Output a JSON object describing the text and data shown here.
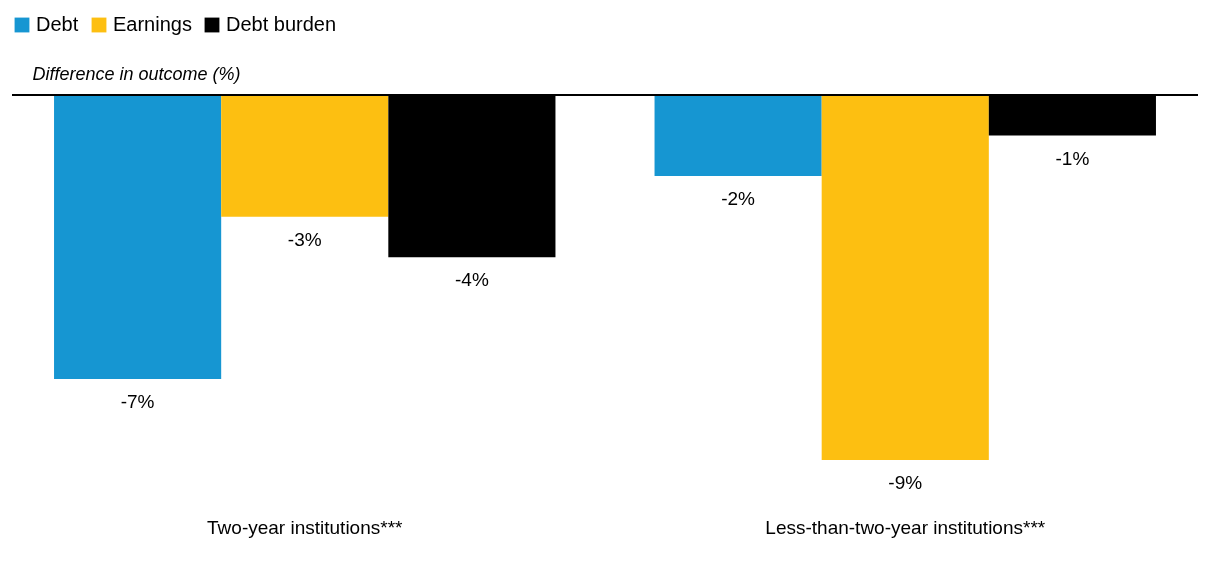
{
  "chart_data": {
    "type": "bar",
    "ylabel": "Difference in outcome (%)",
    "categories": [
      "Two-year institutions***",
      "Less-than-two-year institutions***"
    ],
    "series": [
      {
        "name": "Debt",
        "color": "#1696d2",
        "values": [
          -7,
          -2
        ],
        "value_labels": [
          "-7%",
          "-2%"
        ]
      },
      {
        "name": "Earnings",
        "color": "#fdbf11",
        "values": [
          -3,
          -9
        ],
        "value_labels": [
          "-3%",
          "-9%"
        ]
      },
      {
        "name": "Debt burden",
        "color": "#000000",
        "values": [
          -4,
          -1
        ],
        "value_labels": [
          "-4%",
          "-1%"
        ]
      }
    ],
    "tick_labels": "x",
    "legend": "top left",
    "grid": false
  }
}
